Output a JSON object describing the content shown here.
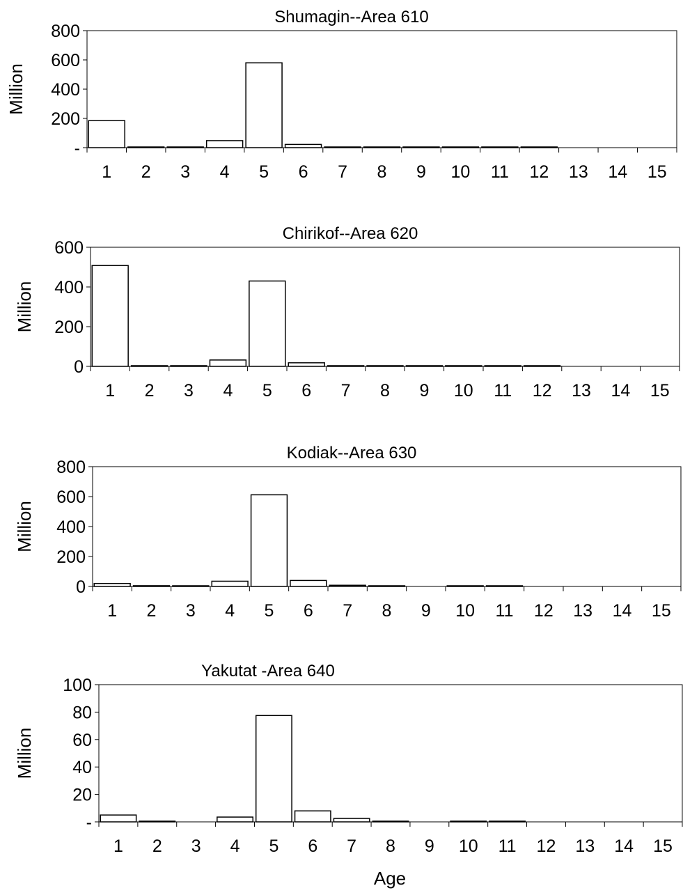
{
  "figure": {
    "xlabel": "Age"
  },
  "chart_data": [
    {
      "type": "bar",
      "title": "Shumagin--Area 610",
      "ylabel": "Million",
      "xlabel": "",
      "categories": [
        "1",
        "2",
        "3",
        "4",
        "5",
        "6",
        "7",
        "8",
        "9",
        "10",
        "11",
        "12",
        "13",
        "14",
        "15"
      ],
      "values": [
        185,
        3,
        2,
        48,
        580,
        22,
        3,
        2,
        1,
        1,
        1,
        1,
        0,
        0,
        0
      ],
      "ylim": [
        0,
        800
      ],
      "yticks": [
        0,
        200,
        400,
        600,
        800
      ],
      "ytick_labels": [
        "-",
        "200",
        "400",
        "600",
        "800"
      ]
    },
    {
      "type": "bar",
      "title": "Chirikof--Area 620",
      "ylabel": "Million",
      "xlabel": "",
      "categories": [
        "1",
        "2",
        "3",
        "4",
        "5",
        "6",
        "7",
        "8",
        "9",
        "10",
        "11",
        "12",
        "13",
        "14",
        "15"
      ],
      "values": [
        508,
        3,
        2,
        32,
        430,
        18,
        3,
        2,
        1,
        1,
        1,
        1,
        0,
        0,
        0
      ],
      "ylim": [
        0,
        600
      ],
      "yticks": [
        0,
        200,
        400,
        600
      ],
      "ytick_labels": [
        "0",
        "200",
        "400",
        "600"
      ]
    },
    {
      "type": "bar",
      "title": "Kodiak--Area 630",
      "ylabel": "Million",
      "xlabel": "",
      "categories": [
        "1",
        "2",
        "3",
        "4",
        "5",
        "6",
        "7",
        "8",
        "9",
        "10",
        "11",
        "12",
        "13",
        "14",
        "15"
      ],
      "values": [
        20,
        5,
        4,
        35,
        612,
        40,
        8,
        4,
        0,
        3,
        3,
        0,
        0,
        0,
        0
      ],
      "ylim": [
        0,
        800
      ],
      "yticks": [
        0,
        200,
        400,
        600,
        800
      ],
      "ytick_labels": [
        "0",
        "200",
        "400",
        "600",
        "800"
      ]
    },
    {
      "type": "bar",
      "title": "Yakutat -Area 640",
      "ylabel": "Million",
      "xlabel": "Age",
      "categories": [
        "1",
        "2",
        "3",
        "4",
        "5",
        "6",
        "7",
        "8",
        "9",
        "10",
        "11",
        "12",
        "13",
        "14",
        "15"
      ],
      "values": [
        5,
        0.5,
        0,
        3.5,
        77.5,
        8,
        2.5,
        0.5,
        0,
        0.3,
        0.3,
        0,
        0,
        0,
        0
      ],
      "ylim": [
        0,
        100
      ],
      "yticks": [
        0,
        20,
        40,
        60,
        80,
        100
      ],
      "ytick_labels": [
        "-",
        "20",
        "40",
        "60",
        "80",
        "100"
      ]
    }
  ]
}
